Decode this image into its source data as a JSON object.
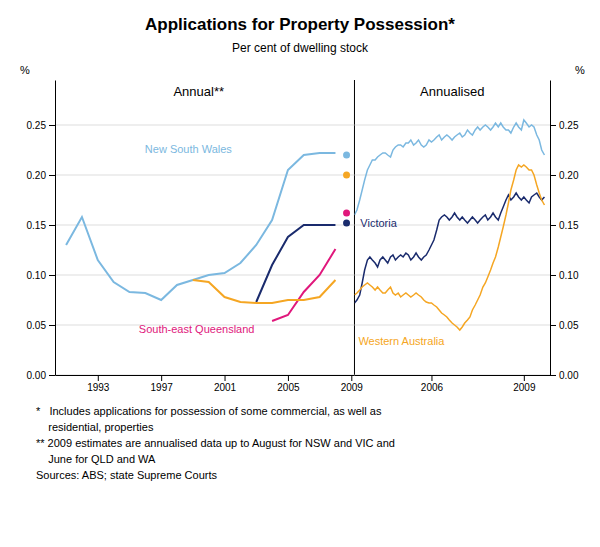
{
  "title": "Applications for Property Possession*",
  "subtitle": "Per cent of dwelling stock",
  "annotations": [
    "*   Includes applications for possession of some commercial, as well as",
    "    residential, properties",
    "** 2009 estimates are annualised data up to August for NSW and VIC and",
    "    June for QLD and WA",
    "Sources: ABS; state Supreme Courts"
  ],
  "chart_data": [
    {
      "type": "line",
      "title": "Annual**",
      "ylabel": "%",
      "xlim": [
        1990.3,
        2009.2
      ],
      "xticks": [
        1993,
        1997,
        2001,
        2005,
        2009
      ],
      "ylim": [
        0.0,
        0.295
      ],
      "yticks": [
        {
          "value": 0.0,
          "label": "0.00"
        },
        {
          "value": 0.05,
          "label": "0.05"
        },
        {
          "value": 0.1,
          "label": "0.10"
        },
        {
          "value": 0.15,
          "label": "0.15"
        },
        {
          "value": 0.2,
          "label": "0.20"
        },
        {
          "value": 0.25,
          "label": "0.25"
        }
      ],
      "grid": true,
      "series": [
        {
          "name": "New South Wales",
          "color": "#7bb8e0",
          "x": [
            1991,
            1992,
            1993,
            1994,
            1995,
            1996,
            1997,
            1998,
            1999,
            2000,
            2001,
            2002,
            2003,
            2004,
            2005,
            2006,
            2007,
            2008
          ],
          "values": [
            0.13,
            0.158,
            0.115,
            0.093,
            0.083,
            0.082,
            0.075,
            0.09,
            0.095,
            0.1,
            0.102,
            0.112,
            0.13,
            0.155,
            0.205,
            0.22,
            0.222,
            0.222
          ]
        },
        {
          "color": "#1a2b6d",
          "x": [
            2003,
            2004,
            2005,
            2006,
            2007,
            2008
          ],
          "values": [
            0.073,
            0.11,
            0.138,
            0.15,
            0.15,
            0.15
          ]
        },
        {
          "name": "South-east Queensland",
          "color": "#e0187c",
          "x": [
            2004,
            2005,
            2006,
            2007,
            2008
          ],
          "values": [
            0.054,
            0.06,
            0.083,
            0.1,
            0.126
          ]
        },
        {
          "color": "#f5a623",
          "x": [
            1999,
            2000,
            2001,
            2002,
            2003,
            2004,
            2005,
            2006,
            2007,
            2008
          ],
          "values": [
            0.095,
            0.093,
            0.078,
            0.073,
            0.072,
            0.072,
            0.075,
            0.075,
            0.078,
            0.095
          ]
        },
        {
          "type": "scatter",
          "x": [
            2008.7,
            2008.7,
            2008.7,
            2008.7
          ],
          "values": [
            0.22,
            0.2,
            0.162,
            0.152
          ],
          "colors": [
            "#7bb8e0",
            "#f5a623",
            "#e0187c",
            "#1a2b6d"
          ]
        }
      ]
    },
    {
      "type": "line",
      "title": "Annualised",
      "ylabel": "%",
      "xlim": [
        2003.5,
        2009.85
      ],
      "xticks": [
        2006,
        2009
      ],
      "ylim": [
        0.0,
        0.295
      ],
      "yticks": [
        {
          "value": 0.0,
          "label": "0.00"
        },
        {
          "value": 0.05,
          "label": "0.05"
        },
        {
          "value": 0.1,
          "label": "0.10"
        },
        {
          "value": 0.15,
          "label": "0.15"
        },
        {
          "value": 0.2,
          "label": "0.20"
        },
        {
          "value": 0.25,
          "label": "0.25"
        }
      ],
      "grid": true,
      "series": [
        {
          "color": "#7bb8e0",
          "x": [
            2003.5,
            2003.58,
            2003.67,
            2003.75,
            2003.83,
            2003.92,
            2004.0,
            2004.08,
            2004.17,
            2004.25,
            2004.33,
            2004.42,
            2004.5,
            2004.58,
            2004.67,
            2004.75,
            2004.83,
            2004.92,
            2005.0,
            2005.08,
            2005.17,
            2005.25,
            2005.33,
            2005.42,
            2005.5,
            2005.58,
            2005.67,
            2005.75,
            2005.83,
            2005.92,
            2006.0,
            2006.08,
            2006.17,
            2006.25,
            2006.33,
            2006.42,
            2006.5,
            2006.58,
            2006.67,
            2006.75,
            2006.83,
            2006.92,
            2007.0,
            2007.08,
            2007.17,
            2007.25,
            2007.33,
            2007.42,
            2007.5,
            2007.58,
            2007.67,
            2007.75,
            2007.83,
            2007.92,
            2008.0,
            2008.08,
            2008.17,
            2008.25,
            2008.33,
            2008.42,
            2008.5,
            2008.58,
            2008.67,
            2008.75,
            2008.83,
            2008.92,
            2009.0,
            2009.08,
            2009.17,
            2009.25,
            2009.33,
            2009.42,
            2009.5,
            2009.58,
            2009.67
          ],
          "values": [
            0.16,
            0.165,
            0.175,
            0.185,
            0.195,
            0.205,
            0.21,
            0.215,
            0.215,
            0.218,
            0.22,
            0.222,
            0.222,
            0.22,
            0.218,
            0.225,
            0.228,
            0.23,
            0.23,
            0.228,
            0.232,
            0.232,
            0.235,
            0.23,
            0.232,
            0.235,
            0.23,
            0.228,
            0.23,
            0.235,
            0.233,
            0.235,
            0.238,
            0.24,
            0.235,
            0.238,
            0.24,
            0.238,
            0.235,
            0.238,
            0.24,
            0.242,
            0.238,
            0.24,
            0.245,
            0.242,
            0.24,
            0.245,
            0.248,
            0.245,
            0.248,
            0.25,
            0.248,
            0.245,
            0.248,
            0.252,
            0.248,
            0.252,
            0.248,
            0.245,
            0.245,
            0.242,
            0.248,
            0.252,
            0.248,
            0.245,
            0.255,
            0.252,
            0.248,
            0.25,
            0.248,
            0.24,
            0.235,
            0.225,
            0.22
          ]
        },
        {
          "name": "Victoria",
          "color": "#1a2b6d",
          "x": [
            2003.5,
            2003.58,
            2003.67,
            2003.75,
            2003.83,
            2003.92,
            2004.0,
            2004.08,
            2004.17,
            2004.25,
            2004.33,
            2004.42,
            2004.5,
            2004.58,
            2004.67,
            2004.75,
            2004.83,
            2004.92,
            2005.0,
            2005.08,
            2005.17,
            2005.25,
            2005.33,
            2005.42,
            2005.5,
            2005.58,
            2005.67,
            2005.75,
            2005.83,
            2005.92,
            2006.0,
            2006.08,
            2006.17,
            2006.25,
            2006.33,
            2006.42,
            2006.5,
            2006.58,
            2006.67,
            2006.75,
            2006.83,
            2006.92,
            2007.0,
            2007.08,
            2007.17,
            2007.25,
            2007.33,
            2007.42,
            2007.5,
            2007.58,
            2007.67,
            2007.75,
            2007.83,
            2007.92,
            2008.0,
            2008.08,
            2008.17,
            2008.25,
            2008.33,
            2008.42,
            2008.5,
            2008.58,
            2008.67,
            2008.75,
            2008.83,
            2008.92,
            2009.0,
            2009.08,
            2009.17,
            2009.25,
            2009.33,
            2009.42,
            2009.5,
            2009.58,
            2009.67
          ],
          "values": [
            0.072,
            0.075,
            0.08,
            0.092,
            0.105,
            0.115,
            0.118,
            0.115,
            0.112,
            0.108,
            0.115,
            0.118,
            0.115,
            0.112,
            0.118,
            0.12,
            0.115,
            0.118,
            0.12,
            0.118,
            0.122,
            0.12,
            0.115,
            0.118,
            0.122,
            0.118,
            0.115,
            0.118,
            0.12,
            0.125,
            0.13,
            0.135,
            0.145,
            0.155,
            0.158,
            0.16,
            0.158,
            0.155,
            0.158,
            0.162,
            0.158,
            0.155,
            0.158,
            0.155,
            0.152,
            0.155,
            0.158,
            0.155,
            0.152,
            0.155,
            0.158,
            0.16,
            0.155,
            0.158,
            0.162,
            0.158,
            0.155,
            0.162,
            0.168,
            0.175,
            0.18,
            0.175,
            0.178,
            0.182,
            0.178,
            0.175,
            0.178,
            0.175,
            0.172,
            0.178,
            0.18,
            0.182,
            0.178,
            0.175,
            0.178
          ]
        },
        {
          "name": "Western Australia",
          "color": "#f5a623",
          "x": [
            2003.5,
            2003.58,
            2003.67,
            2003.75,
            2003.83,
            2003.92,
            2004.0,
            2004.08,
            2004.17,
            2004.25,
            2004.33,
            2004.42,
            2004.5,
            2004.58,
            2004.67,
            2004.75,
            2004.83,
            2004.92,
            2005.0,
            2005.08,
            2005.17,
            2005.25,
            2005.33,
            2005.42,
            2005.5,
            2005.58,
            2005.67,
            2005.75,
            2005.83,
            2005.92,
            2006.0,
            2006.08,
            2006.17,
            2006.25,
            2006.33,
            2006.42,
            2006.5,
            2006.58,
            2006.67,
            2006.75,
            2006.83,
            2006.92,
            2007.0,
            2007.08,
            2007.17,
            2007.25,
            2007.33,
            2007.42,
            2007.5,
            2007.58,
            2007.67,
            2007.75,
            2007.83,
            2007.92,
            2008.0,
            2008.08,
            2008.17,
            2008.25,
            2008.33,
            2008.42,
            2008.5,
            2008.58,
            2008.67,
            2008.75,
            2008.83,
            2008.92,
            2009.0,
            2009.08,
            2009.17,
            2009.25,
            2009.33,
            2009.42,
            2009.5,
            2009.58,
            2009.67
          ],
          "values": [
            0.08,
            0.082,
            0.085,
            0.088,
            0.09,
            0.092,
            0.09,
            0.088,
            0.085,
            0.088,
            0.085,
            0.082,
            0.082,
            0.085,
            0.088,
            0.082,
            0.08,
            0.082,
            0.078,
            0.08,
            0.082,
            0.08,
            0.078,
            0.08,
            0.082,
            0.08,
            0.078,
            0.075,
            0.073,
            0.072,
            0.072,
            0.07,
            0.068,
            0.065,
            0.062,
            0.06,
            0.058,
            0.055,
            0.052,
            0.05,
            0.048,
            0.045,
            0.048,
            0.052,
            0.055,
            0.058,
            0.065,
            0.07,
            0.075,
            0.08,
            0.088,
            0.092,
            0.098,
            0.105,
            0.112,
            0.118,
            0.128,
            0.138,
            0.148,
            0.16,
            0.172,
            0.185,
            0.195,
            0.205,
            0.21,
            0.208,
            0.21,
            0.208,
            0.205,
            0.205,
            0.2,
            0.19,
            0.182,
            0.175,
            0.17
          ]
        }
      ]
    }
  ]
}
